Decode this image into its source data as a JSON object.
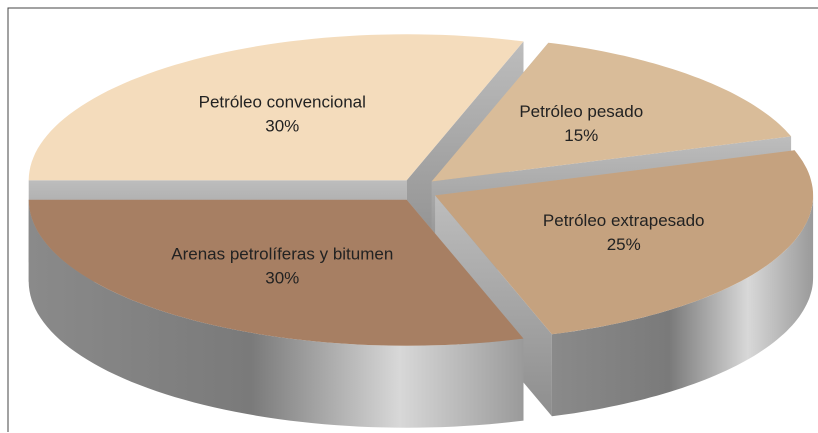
{
  "chart_data": {
    "type": "pie3d",
    "categories": [
      "Petróleo convencional",
      "Petróleo pesado",
      "Petróleo extrapesado",
      "Arenas petrolíferas y bitumen"
    ],
    "values": [
      30,
      15,
      25,
      30
    ],
    "value_labels": [
      "30%",
      "15%",
      "25%",
      "30%"
    ],
    "colors": [
      "#f4dcbc",
      "#d9bc99",
      "#c5a27f",
      "#a77f63"
    ]
  }
}
